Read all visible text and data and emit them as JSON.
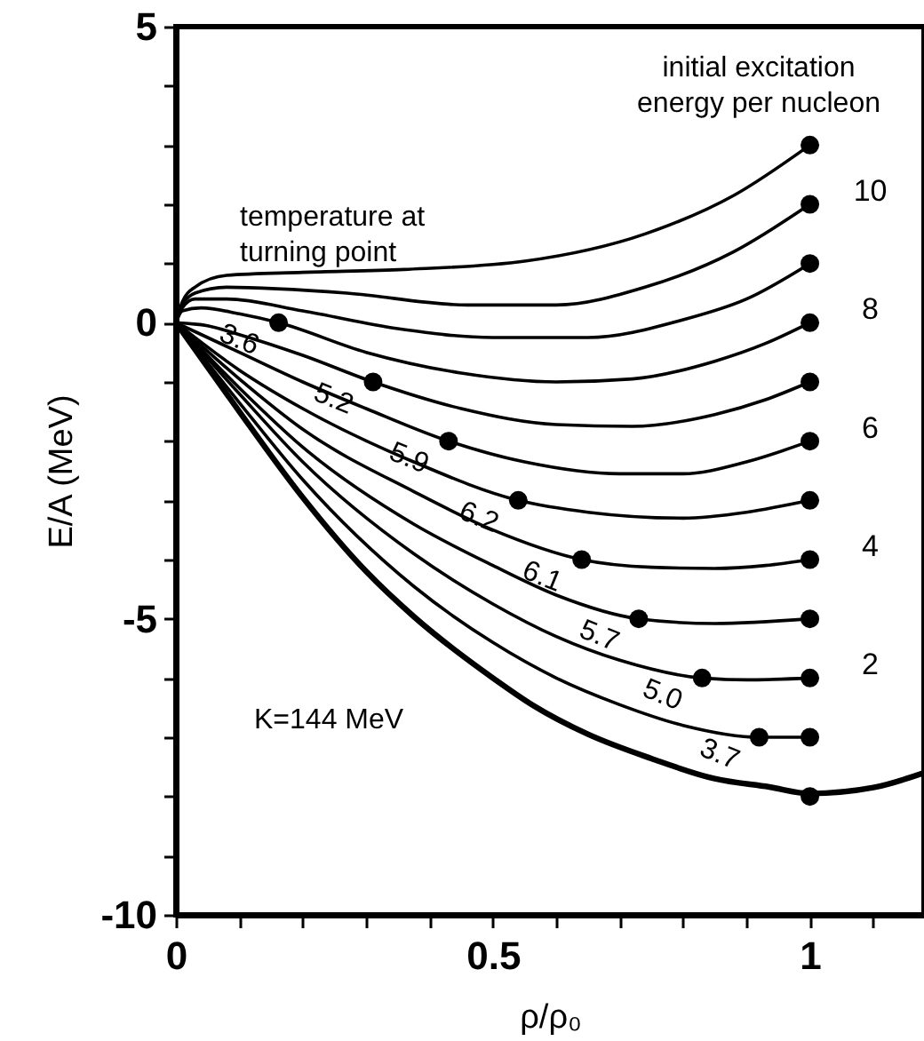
{
  "chart_data": {
    "type": "line",
    "xlabel": "ρ/ρ₀",
    "ylabel": "E/A (MeV)",
    "xlim": [
      0,
      1.18
    ],
    "ylim": [
      -10,
      5
    ],
    "xticks": [
      0,
      {
        "value": 0.1,
        "label": null
      },
      {
        "value": 0.2,
        "label": null
      },
      {
        "value": 0.3,
        "label": null
      },
      {
        "value": 0.4,
        "label": null
      },
      0.5,
      {
        "value": 0.6,
        "label": null
      },
      {
        "value": 0.7,
        "label": null
      },
      {
        "value": 0.8,
        "label": null
      },
      {
        "value": 0.9,
        "label": null
      },
      1,
      {
        "value": 1.1,
        "label": null
      }
    ],
    "yticks": [
      -10,
      {
        "value": -9,
        "label": null
      },
      {
        "value": -8,
        "label": null
      },
      {
        "value": -7,
        "label": null
      },
      {
        "value": -6,
        "label": null
      },
      -5,
      {
        "value": -4,
        "label": null
      },
      {
        "value": -3,
        "label": null
      },
      {
        "value": -2,
        "label": null
      },
      {
        "value": -1,
        "label": null
      },
      0,
      {
        "value": 1,
        "label": null
      },
      {
        "value": 2,
        "label": null
      },
      {
        "value": 3,
        "label": null
      },
      {
        "value": 4,
        "label": null
      },
      5
    ],
    "grid": false,
    "line_style": "solid",
    "series": [
      {
        "type": "line",
        "color": "#000000",
        "x": [
          0,
          0.01,
          0.03,
          0.08,
          0.2,
          0.36,
          0.55,
          0.74,
          0.88,
          1
        ],
        "values": [
          0,
          0.35,
          0.6,
          0.8,
          0.85,
          0.9,
          1.04,
          1.5,
          2.15,
          3
        ]
      },
      {
        "type": "line",
        "color": "#000000",
        "x": [
          0,
          0.01,
          0.03,
          0.08,
          0.27,
          0.46,
          0.6,
          0.74,
          0.88,
          1
        ],
        "values": [
          0,
          0.3,
          0.5,
          0.6,
          0.5,
          0.3,
          0.3,
          0.6,
          1.2,
          2
        ]
      },
      {
        "type": "line",
        "color": "#000000",
        "x": [
          0,
          0.01,
          0.03,
          0.08,
          0.2,
          0.35,
          0.5,
          0.65,
          0.8,
          0.9,
          1
        ],
        "values": [
          0,
          0.25,
          0.4,
          0.4,
          0.2,
          -0.1,
          -0.25,
          -0.25,
          0.05,
          0.4,
          1
        ]
      },
      {
        "type": "line",
        "color": "#000000",
        "x": [
          0,
          0.01,
          0.04,
          0.1,
          0.162,
          0.3,
          0.45,
          0.6,
          0.72,
          0.85,
          0.93,
          1
        ],
        "values": [
          0,
          0.2,
          0.25,
          0.15,
          0,
          -0.5,
          -0.85,
          -1.0,
          -0.95,
          -0.65,
          -0.35,
          0
        ]
      },
      {
        "type": "line",
        "color": "#000000",
        "x": [
          0,
          0.05,
          0.1,
          0.2,
          0.311,
          0.45,
          0.6,
          0.72,
          0.85,
          0.93,
          1
        ],
        "values": [
          0,
          -0.05,
          -0.2,
          -0.55,
          -1,
          -1.45,
          -1.72,
          -1.75,
          -1.55,
          -1.3,
          -1
        ]
      },
      {
        "type": "line",
        "color": "#000000",
        "x": [
          0,
          0.05,
          0.1,
          0.2,
          0.3,
          0.43,
          0.55,
          0.7,
          0.8,
          0.9,
          1
        ],
        "values": [
          0,
          -0.25,
          -0.5,
          -1.0,
          -1.45,
          -2,
          -2.35,
          -2.55,
          -2.55,
          -2.35,
          -2
        ]
      },
      {
        "type": "line",
        "color": "#000000",
        "x": [
          0,
          0.1,
          0.2,
          0.375,
          0.54,
          0.65,
          0.8,
          0.9,
          1
        ],
        "values": [
          0,
          -0.8,
          -1.45,
          -2.35,
          -3,
          -3.2,
          -3.3,
          -3.2,
          -3
        ]
      },
      {
        "type": "line",
        "color": "#000000",
        "x": [
          0,
          0.1,
          0.2,
          0.375,
          0.5,
          0.64,
          0.75,
          0.85,
          0.93,
          1
        ],
        "values": [
          0,
          -0.95,
          -1.8,
          -2.85,
          -3.5,
          -4,
          -4.13,
          -4.15,
          -4.1,
          -4
        ]
      },
      {
        "type": "line",
        "color": "#000000",
        "x": [
          0,
          0.1,
          0.2,
          0.375,
          0.5,
          0.6,
          0.73,
          0.85,
          1
        ],
        "values": [
          0,
          -1.1,
          -2.1,
          -3.4,
          -4.1,
          -4.6,
          -5,
          -5.08,
          -5
        ]
      },
      {
        "type": "line",
        "color": "#000000",
        "x": [
          0,
          0.1,
          0.2,
          0.375,
          0.5,
          0.6,
          0.7,
          0.83,
          0.9,
          1
        ],
        "values": [
          0,
          -1.2,
          -2.35,
          -3.9,
          -4.75,
          -5.3,
          -5.7,
          -6,
          -6.03,
          -6
        ]
      },
      {
        "type": "line",
        "color": "#000000",
        "x": [
          0,
          0.1,
          0.2,
          0.375,
          0.5,
          0.6,
          0.7,
          0.8,
          0.92,
          1
        ],
        "values": [
          0,
          -1.35,
          -2.65,
          -4.45,
          -5.4,
          -6,
          -6.45,
          -6.8,
          -7,
          -7
        ]
      },
      {
        "type": "line",
        "color": "#000000",
        "x": [
          0,
          0.05,
          0.1,
          0.2,
          0.3,
          0.375,
          0.5,
          0.563,
          0.65,
          0.75,
          0.85,
          0.936,
          1,
          1.1,
          1.18
        ],
        "values": [
          0,
          -0.75,
          -1.5,
          -2.95,
          -4.2,
          -4.96,
          -6.0,
          -6.46,
          -6.95,
          -7.36,
          -7.7,
          -7.84,
          -7.95,
          -7.85,
          -7.6
        ]
      },
      {
        "type": "scatter",
        "color": "#000000",
        "marker": "circle",
        "x": [
          1,
          1,
          1,
          1,
          1,
          1,
          1,
          1,
          1,
          1,
          1,
          1,
          0.162,
          0.311,
          0.43,
          0.54,
          0.64,
          0.73,
          0.83,
          0.92
        ],
        "values": [
          3,
          2,
          1,
          0,
          -1,
          -2,
          -3,
          -4,
          -5,
          -6,
          -7,
          -8,
          0,
          -1,
          -2,
          -3,
          -4,
          -5,
          -6,
          -7
        ]
      }
    ],
    "annotations": [
      "initial excitation\nenergy per nucleon",
      "temperature at\nturning point",
      "K=144 MeV",
      {
        "text": "3.6",
        "x": 0.162,
        "y": 0
      },
      {
        "text": "5.2",
        "x": 0.311,
        "y": -1
      },
      {
        "text": "5.9",
        "x": 0.43,
        "y": -2
      },
      {
        "text": "6.2",
        "x": 0.54,
        "y": -3
      },
      {
        "text": "6.1",
        "x": 0.64,
        "y": -4
      },
      {
        "text": "5.7",
        "x": 0.73,
        "y": -5
      },
      {
        "text": "5.0",
        "x": 0.83,
        "y": -6
      },
      {
        "text": "3.7",
        "x": 0.92,
        "y": -7
      },
      {
        "text": "10",
        "x": 1,
        "y": 2
      },
      {
        "text": "8",
        "x": 1,
        "y": 0
      },
      {
        "text": "6",
        "x": 1,
        "y": -2
      },
      {
        "text": "4",
        "x": 1,
        "y": -4
      },
      {
        "text": "2",
        "x": 1,
        "y": -6
      }
    ]
  }
}
